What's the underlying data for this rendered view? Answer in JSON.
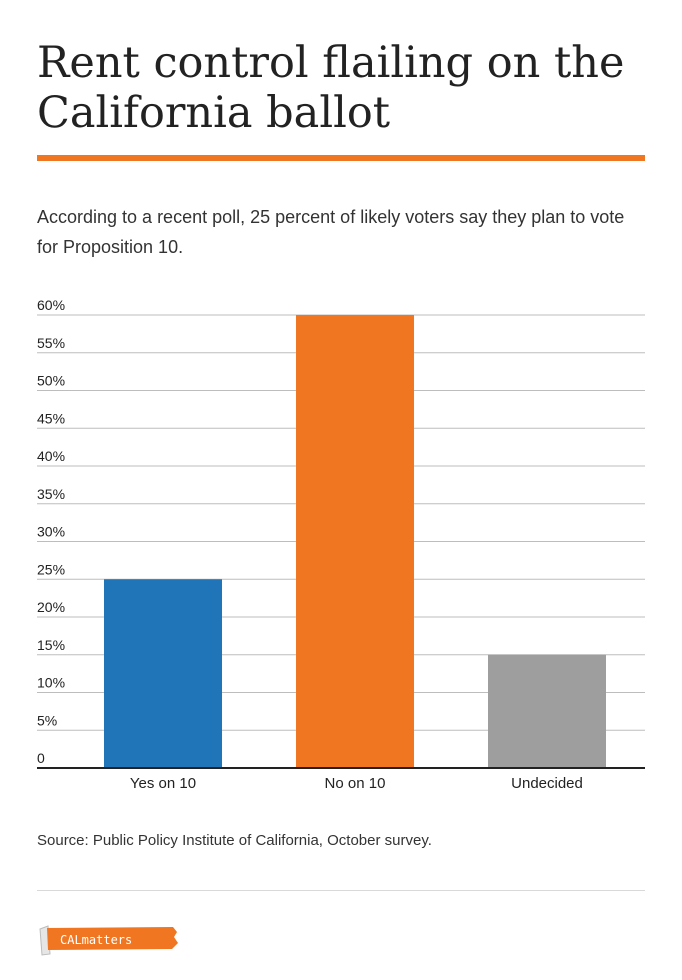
{
  "title": "Rent control flailing on the California ballot",
  "subtitle": "According to a recent poll, 25 percent of likely voters say they plan to vote for Proposition 10.",
  "source": "Source: Public Policy Institute of California, October survey.",
  "logo_text": "CALmatters",
  "colors": {
    "accent": "#f07622",
    "yes": "#1f75b8",
    "no": "#f07622",
    "undecided": "#9e9e9e",
    "grid": "#bdbdbd",
    "axis": "#222222"
  },
  "chart_data": {
    "type": "bar",
    "title": "",
    "xlabel": "",
    "ylabel": "",
    "categories": [
      "Yes on 10",
      "No on 10",
      "Undecided"
    ],
    "values": [
      25,
      60,
      15
    ],
    "bar_colors": [
      "#1f75b8",
      "#f07622",
      "#9e9e9e"
    ],
    "ylim": [
      0,
      60
    ],
    "yticks": [
      0,
      5,
      10,
      15,
      20,
      25,
      30,
      35,
      40,
      45,
      50,
      55,
      60
    ],
    "ytick_labels": [
      "0",
      "5%",
      "10%",
      "15%",
      "20%",
      "25%",
      "30%",
      "35%",
      "40%",
      "45%",
      "50%",
      "55%",
      "60%"
    ],
    "grid": true,
    "legend": "none"
  }
}
